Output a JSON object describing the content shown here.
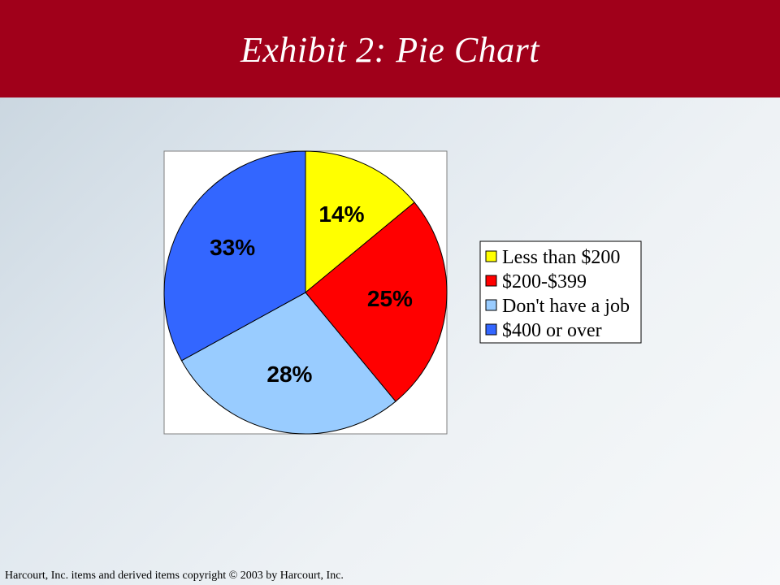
{
  "slide": {
    "title": "Exhibit 2: Pie Chart",
    "footer": "Harcourt, Inc. items and derived items copyright © 2003 by Harcourt, Inc.",
    "header_color": "#a0001a"
  },
  "chart_data": {
    "type": "pie",
    "title": "",
    "slices": [
      {
        "label": "Less than $200",
        "value": 14,
        "data_label": "14%",
        "color": "#ffff00"
      },
      {
        "label": "$200-$399",
        "value": 25,
        "data_label": "25%",
        "color": "#ff0000"
      },
      {
        "label": "Don't have a job",
        "value": 28,
        "data_label": "28%",
        "color": "#99ccff"
      },
      {
        "label": "$400 or over",
        "value": 33,
        "data_label": "33%",
        "color": "#3366ff"
      }
    ],
    "start_angle": "12 o'clock",
    "direction": "clockwise",
    "legend_position": "right"
  }
}
